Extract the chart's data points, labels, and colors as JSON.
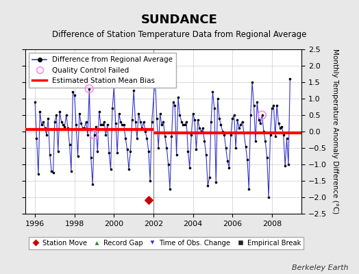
{
  "title": "SUNDANCE",
  "subtitle": "Difference of Station Temperature Data from Regional Average",
  "ylabel": "Monthly Temperature Anomaly Difference (°C)",
  "xlim": [
    1995.5,
    2009.5
  ],
  "ylim": [
    -2.5,
    2.5
  ],
  "xticks": [
    1996,
    1998,
    2000,
    2002,
    2004,
    2006,
    2008
  ],
  "yticks": [
    -2.5,
    -2,
    -1.5,
    -1,
    -0.5,
    0,
    0.5,
    1,
    1.5,
    2,
    2.5
  ],
  "background_color": "#e8e8e8",
  "plot_background_color": "#ffffff",
  "line_color": "#3333cc",
  "dot_color": "#000000",
  "bias_color": "#ff0000",
  "qc_color": "#ff88ff",
  "bias_break_x": 2002.0,
  "bias_1_start": 1995.5,
  "bias_1_end": 2002.0,
  "bias_1_value": 0.07,
  "bias_2_start": 2002.0,
  "bias_2_end": 2009.5,
  "bias_2_value": -0.04,
  "station_move_x": 2001.75,
  "station_move_y": -2.08,
  "qc_points": [
    [
      1998.75,
      1.3
    ],
    [
      1999.0,
      -0.1
    ],
    [
      2007.5,
      0.5
    ]
  ],
  "monthly_data": [
    [
      1996.0,
      0.9
    ],
    [
      1996.083,
      -0.2
    ],
    [
      1996.167,
      -1.3
    ],
    [
      1996.25,
      0.6
    ],
    [
      1996.333,
      0.2
    ],
    [
      1996.417,
      0.3
    ],
    [
      1996.5,
      0.1
    ],
    [
      1996.583,
      -0.1
    ],
    [
      1996.667,
      0.4
    ],
    [
      1996.75,
      -0.7
    ],
    [
      1996.833,
      -1.2
    ],
    [
      1996.917,
      -1.25
    ],
    [
      1997.0,
      0.3
    ],
    [
      1997.083,
      0.5
    ],
    [
      1997.167,
      -0.6
    ],
    [
      1997.25,
      0.6
    ],
    [
      1997.333,
      0.3
    ],
    [
      1997.417,
      0.2
    ],
    [
      1997.5,
      0.15
    ],
    [
      1997.583,
      0.5
    ],
    [
      1997.667,
      0.1
    ],
    [
      1997.75,
      -0.4
    ],
    [
      1997.833,
      -1.2
    ],
    [
      1997.917,
      1.2
    ],
    [
      1998.0,
      1.1
    ],
    [
      1998.083,
      0.2
    ],
    [
      1998.167,
      -0.75
    ],
    [
      1998.25,
      0.55
    ],
    [
      1998.333,
      0.25
    ],
    [
      1998.417,
      0.1
    ],
    [
      1998.5,
      0.1
    ],
    [
      1998.583,
      0.3
    ],
    [
      1998.667,
      -0.1
    ],
    [
      1998.75,
      1.3
    ],
    [
      1998.833,
      -0.8
    ],
    [
      1998.917,
      -1.6
    ],
    [
      1999.0,
      -0.1
    ],
    [
      1999.083,
      0.15
    ],
    [
      1999.167,
      -0.6
    ],
    [
      1999.25,
      0.6
    ],
    [
      1999.333,
      0.2
    ],
    [
      1999.417,
      0.2
    ],
    [
      1999.5,
      0.3
    ],
    [
      1999.583,
      -0.1
    ],
    [
      1999.667,
      0.2
    ],
    [
      1999.75,
      -0.65
    ],
    [
      1999.833,
      -1.15
    ],
    [
      1999.917,
      0.7
    ],
    [
      2000.0,
      1.35
    ],
    [
      2000.083,
      0.25
    ],
    [
      2000.167,
      -0.65
    ],
    [
      2000.25,
      0.55
    ],
    [
      2000.333,
      0.3
    ],
    [
      2000.417,
      0.2
    ],
    [
      2000.5,
      0.2
    ],
    [
      2000.583,
      -0.2
    ],
    [
      2000.667,
      -0.55
    ],
    [
      2000.75,
      -1.15
    ],
    [
      2000.833,
      -0.6
    ],
    [
      2000.917,
      0.35
    ],
    [
      2001.0,
      1.25
    ],
    [
      2001.083,
      0.3
    ],
    [
      2001.167,
      -0.2
    ],
    [
      2001.25,
      0.55
    ],
    [
      2001.333,
      0.3
    ],
    [
      2001.417,
      0.1
    ],
    [
      2001.5,
      0.3
    ],
    [
      2001.583,
      0.0
    ],
    [
      2001.667,
      -0.2
    ],
    [
      2001.75,
      -0.6
    ],
    [
      2001.833,
      -1.5
    ],
    [
      2001.917,
      0.3
    ],
    [
      2002.083,
      1.65
    ],
    [
      2002.167,
      0.4
    ],
    [
      2002.25,
      -0.5
    ],
    [
      2002.333,
      0.55
    ],
    [
      2002.417,
      0.2
    ],
    [
      2002.5,
      0.3
    ],
    [
      2002.583,
      -0.15
    ],
    [
      2002.667,
      -0.5
    ],
    [
      2002.75,
      -1.0
    ],
    [
      2002.833,
      -1.75
    ],
    [
      2002.917,
      -0.15
    ],
    [
      2003.0,
      0.9
    ],
    [
      2003.083,
      0.8
    ],
    [
      2003.167,
      -0.7
    ],
    [
      2003.25,
      1.05
    ],
    [
      2003.333,
      0.5
    ],
    [
      2003.417,
      0.3
    ],
    [
      2003.5,
      0.2
    ],
    [
      2003.583,
      0.2
    ],
    [
      2003.667,
      0.3
    ],
    [
      2003.75,
      -0.6
    ],
    [
      2003.833,
      -1.1
    ],
    [
      2003.917,
      -0.1
    ],
    [
      2004.0,
      0.55
    ],
    [
      2004.083,
      0.35
    ],
    [
      2004.167,
      -0.55
    ],
    [
      2004.25,
      0.35
    ],
    [
      2004.333,
      0.1
    ],
    [
      2004.417,
      0.0
    ],
    [
      2004.5,
      0.1
    ],
    [
      2004.583,
      -0.3
    ],
    [
      2004.667,
      -0.7
    ],
    [
      2004.75,
      -1.65
    ],
    [
      2004.833,
      -1.4
    ],
    [
      2004.917,
      0.3
    ],
    [
      2005.0,
      1.2
    ],
    [
      2005.083,
      0.7
    ],
    [
      2005.167,
      -1.55
    ],
    [
      2005.25,
      1.0
    ],
    [
      2005.333,
      0.4
    ],
    [
      2005.417,
      0.2
    ],
    [
      2005.5,
      0.0
    ],
    [
      2005.583,
      -0.1
    ],
    [
      2005.667,
      -0.5
    ],
    [
      2005.75,
      -0.9
    ],
    [
      2005.833,
      -1.1
    ],
    [
      2005.917,
      -0.1
    ],
    [
      2006.0,
      0.4
    ],
    [
      2006.083,
      0.5
    ],
    [
      2006.167,
      -0.5
    ],
    [
      2006.25,
      0.35
    ],
    [
      2006.333,
      0.1
    ],
    [
      2006.417,
      0.2
    ],
    [
      2006.5,
      0.3
    ],
    [
      2006.583,
      -0.05
    ],
    [
      2006.667,
      -0.45
    ],
    [
      2006.75,
      -0.85
    ],
    [
      2006.833,
      -1.75
    ],
    [
      2006.917,
      0.5
    ],
    [
      2007.0,
      1.5
    ],
    [
      2007.083,
      0.8
    ],
    [
      2007.167,
      -0.3
    ],
    [
      2007.25,
      0.9
    ],
    [
      2007.333,
      0.35
    ],
    [
      2007.417,
      0.25
    ],
    [
      2007.5,
      0.5
    ],
    [
      2007.583,
      0.0
    ],
    [
      2007.667,
      -0.3
    ],
    [
      2007.75,
      -0.8
    ],
    [
      2007.833,
      -2.0
    ],
    [
      2007.917,
      -0.1
    ],
    [
      2008.0,
      0.7
    ],
    [
      2008.083,
      0.8
    ],
    [
      2008.167,
      -0.15
    ],
    [
      2008.25,
      0.8
    ],
    [
      2008.333,
      0.25
    ],
    [
      2008.417,
      0.1
    ],
    [
      2008.5,
      0.15
    ],
    [
      2008.583,
      -0.1
    ],
    [
      2008.667,
      -1.05
    ],
    [
      2008.75,
      -0.2
    ],
    [
      2008.833,
      -1.0
    ],
    [
      2008.917,
      1.6
    ]
  ]
}
